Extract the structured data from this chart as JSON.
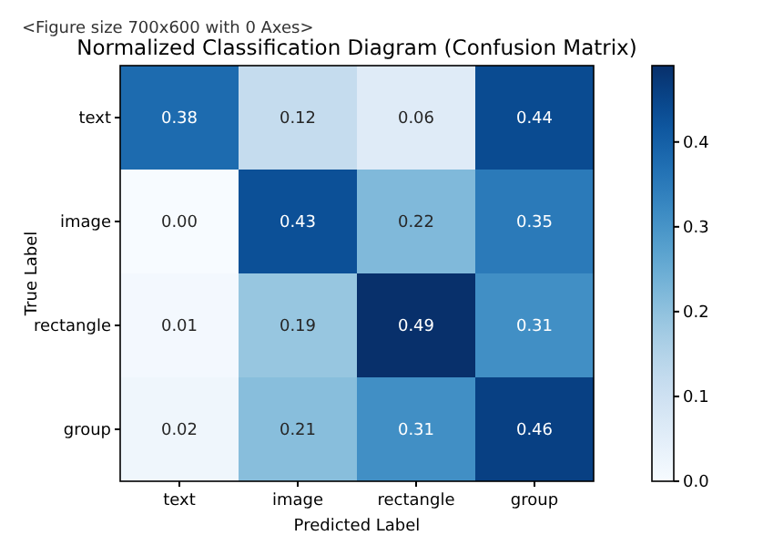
{
  "chart_data": {
    "type": "heatmap",
    "title": "Normalized Classification Diagram (Confusion Matrix)",
    "xlabel": "Predicted Label",
    "ylabel": "True Label",
    "annotations": [
      "<Figure size 700x600 with 0 Axes>"
    ],
    "categories": [
      "text",
      "image",
      "rectangle",
      "group"
    ],
    "y_categories": [
      "text",
      "image",
      "rectangle",
      "group"
    ],
    "cells": [
      [
        0.38,
        0.12,
        0.06,
        0.44
      ],
      [
        0.0,
        0.43,
        0.22,
        0.35
      ],
      [
        0.01,
        0.19,
        0.49,
        0.31
      ],
      [
        0.02,
        0.21,
        0.31,
        0.46
      ]
    ],
    "cell_labels": [
      [
        "0.38",
        "0.12",
        "0.06",
        "0.44"
      ],
      [
        "0.00",
        "0.43",
        "0.22",
        "0.35"
      ],
      [
        "0.01",
        "0.19",
        "0.49",
        "0.31"
      ],
      [
        "0.02",
        "0.21",
        "0.31",
        "0.46"
      ]
    ],
    "clim": [
      0,
      0.49
    ],
    "cticks": [
      {
        "value": 0,
        "label": "0.0"
      },
      {
        "value": 0.1,
        "label": "0.1"
      },
      {
        "value": 0.2,
        "label": "0.2"
      },
      {
        "value": 0.3,
        "label": "0.3"
      },
      {
        "value": 0.4,
        "label": "0.4"
      }
    ]
  }
}
